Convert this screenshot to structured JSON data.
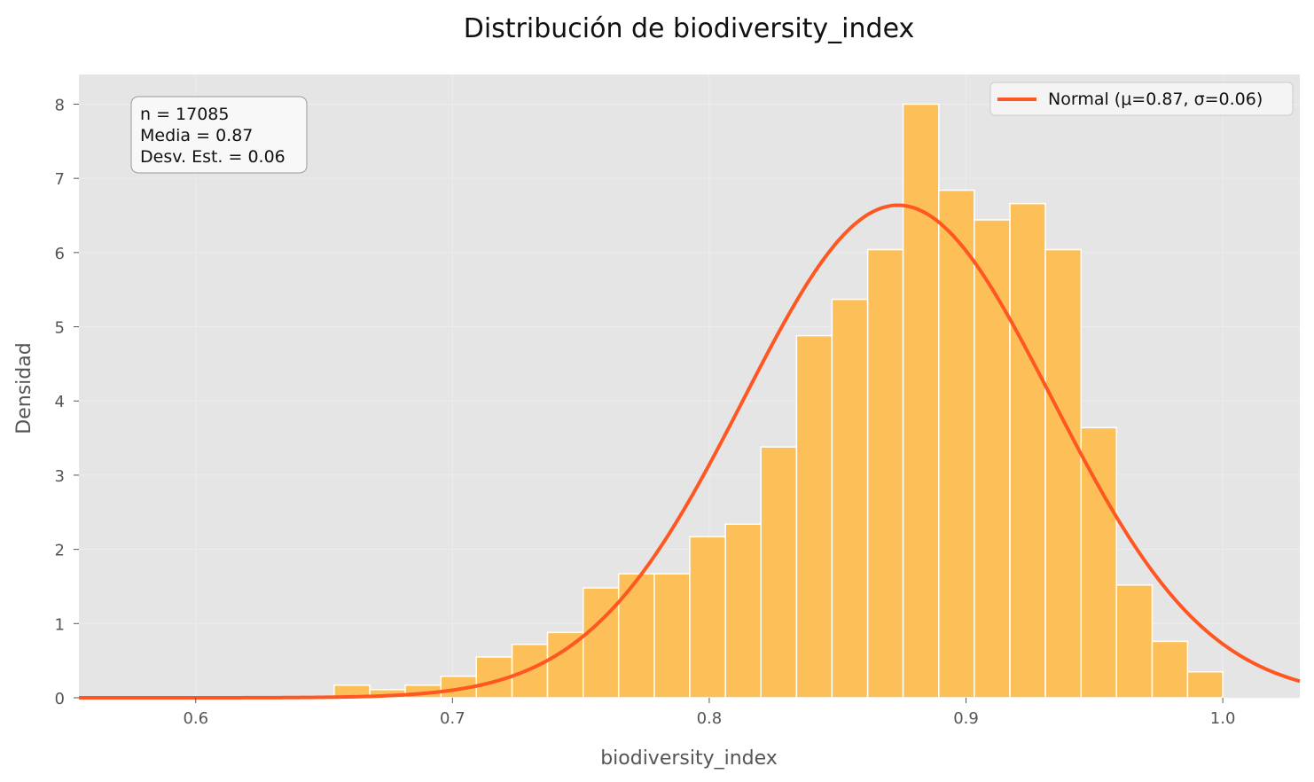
{
  "chart_data": {
    "type": "bar",
    "title": "Distribución de biodiversity_index",
    "xlabel": "biodiversity_index",
    "ylabel": "Densidad",
    "xlim": [
      0.5545,
      1.03
    ],
    "ylim": [
      0,
      8.4
    ],
    "x_ticks": [
      0.6,
      0.7,
      0.8,
      0.9,
      1.0
    ],
    "x_tick_labels": [
      "0.6",
      "0.7",
      "0.8",
      "0.9",
      "1.0"
    ],
    "y_ticks": [
      0,
      1,
      2,
      3,
      4,
      5,
      6,
      7,
      8
    ],
    "y_tick_labels": [
      "0",
      "1",
      "2",
      "3",
      "4",
      "5",
      "6",
      "7",
      "8"
    ],
    "grid": true,
    "bar_color": "#FDBF57",
    "line_color": "#FF5722",
    "background_color": "#E5E5E5",
    "bins": [
      {
        "x0": 0.6539,
        "x1": 0.6678,
        "density": 0.17
      },
      {
        "x0": 0.6678,
        "x1": 0.6816,
        "density": 0.11
      },
      {
        "x0": 0.6816,
        "x1": 0.6955,
        "density": 0.17
      },
      {
        "x0": 0.6955,
        "x1": 0.7093,
        "density": 0.29
      },
      {
        "x0": 0.7093,
        "x1": 0.7232,
        "density": 0.55
      },
      {
        "x0": 0.7232,
        "x1": 0.737,
        "density": 0.72
      },
      {
        "x0": 0.737,
        "x1": 0.7509,
        "density": 0.88
      },
      {
        "x0": 0.7509,
        "x1": 0.7647,
        "density": 1.48
      },
      {
        "x0": 0.7647,
        "x1": 0.7786,
        "density": 1.67
      },
      {
        "x0": 0.7786,
        "x1": 0.7924,
        "density": 1.67
      },
      {
        "x0": 0.7924,
        "x1": 0.8063,
        "density": 2.17
      },
      {
        "x0": 0.8063,
        "x1": 0.8201,
        "density": 2.34
      },
      {
        "x0": 0.8201,
        "x1": 0.834,
        "density": 3.38
      },
      {
        "x0": 0.834,
        "x1": 0.8478,
        "density": 4.88
      },
      {
        "x0": 0.8478,
        "x1": 0.8617,
        "density": 5.37
      },
      {
        "x0": 0.8617,
        "x1": 0.8755,
        "density": 6.04
      },
      {
        "x0": 0.8755,
        "x1": 0.8894,
        "density": 8.0
      },
      {
        "x0": 0.8894,
        "x1": 0.9032,
        "density": 6.84
      },
      {
        "x0": 0.9032,
        "x1": 0.9171,
        "density": 6.44
      },
      {
        "x0": 0.9171,
        "x1": 0.9309,
        "density": 6.66
      },
      {
        "x0": 0.9309,
        "x1": 0.9448,
        "density": 6.04
      },
      {
        "x0": 0.9448,
        "x1": 0.9586,
        "density": 3.64
      },
      {
        "x0": 0.9586,
        "x1": 0.9725,
        "density": 1.52
      },
      {
        "x0": 0.9725,
        "x1": 0.9863,
        "density": 0.76
      },
      {
        "x0": 0.9863,
        "x1": 1.0,
        "density": 0.35
      }
    ],
    "series": [
      {
        "name": "Normal (μ=0.87, σ=0.06)",
        "type": "line",
        "distribution": "normal",
        "mu": 0.8735,
        "sigma": 0.0601
      }
    ],
    "legend": {
      "position": "top-right",
      "entries": [
        "Normal (μ=0.87, σ=0.06)"
      ]
    },
    "annotations": {
      "stats_box": [
        "n = 17085",
        "Media = 0.87",
        "Desv. Est. = 0.06"
      ],
      "position": "top-left"
    }
  }
}
